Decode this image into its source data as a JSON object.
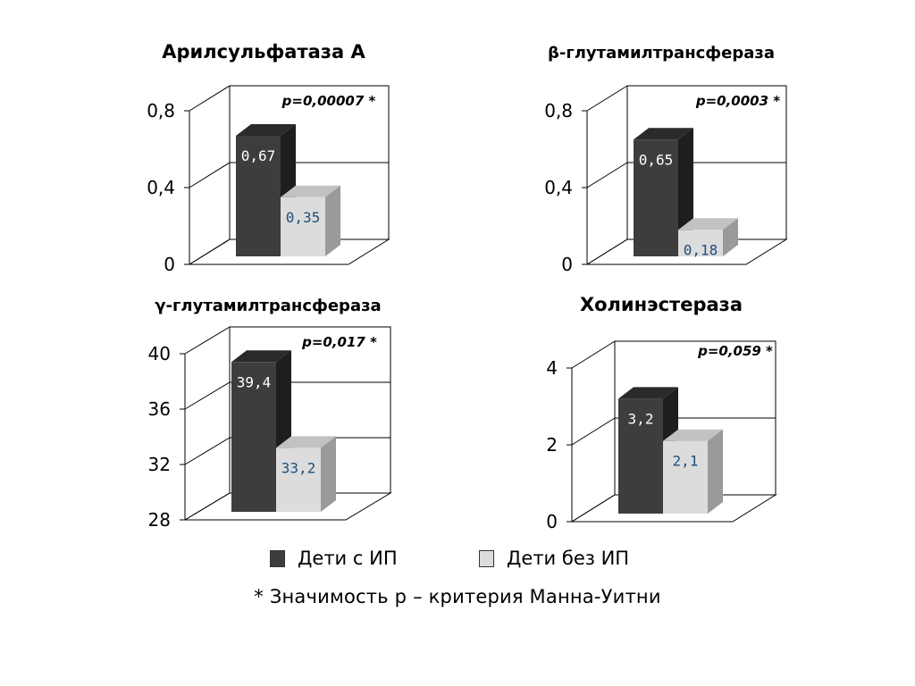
{
  "colors": {
    "series1_front": "#3d3d3d",
    "series1_top": "#2a2a2a",
    "series1_side": "#1e1e1e",
    "series2_front": "#dcdcdc",
    "series2_top": "#c2c2c2",
    "series2_side": "#9a9a9a",
    "label_dark": "#ffffff",
    "label_light": "#1f4f7a",
    "grid": "#000000"
  },
  "legend": {
    "series1": "Дети с ИП",
    "series2": "Дети без ИП"
  },
  "footnote": "* Значимость р – критерия Манна-Уитни",
  "chart_data": [
    {
      "type": "bar",
      "title": "Арилсульфатаза А",
      "annotation": "p=0,00007 *",
      "yticks": [
        "0",
        "0,4",
        "0,8"
      ],
      "ylim": [
        0,
        0.8
      ],
      "series": [
        {
          "name": "Дети с ИП",
          "value": 0.67,
          "label": "0,67"
        },
        {
          "name": "Дети без ИП",
          "value": 0.35,
          "label": "0,35"
        }
      ]
    },
    {
      "type": "bar",
      "title": "β-глутамилтрансфераза",
      "annotation": "p=0,0003 *",
      "yticks": [
        "0",
        "0,4",
        "0,8"
      ],
      "ylim": [
        0,
        0.8
      ],
      "series": [
        {
          "name": "Дети с ИП",
          "value": 0.65,
          "label": "0,65"
        },
        {
          "name": "Дети без ИП",
          "value": 0.18,
          "label": "0,18"
        }
      ]
    },
    {
      "type": "bar",
      "title": "γ-глутамилтрансфераза",
      "annotation": "p=0,017 *",
      "yticks": [
        "28",
        "32",
        "36",
        "40"
      ],
      "ylim": [
        28,
        40
      ],
      "series": [
        {
          "name": "Дети с ИП",
          "value": 39.4,
          "label": "39,4"
        },
        {
          "name": "Дети без ИП",
          "value": 33.2,
          "label": "33,2"
        }
      ]
    },
    {
      "type": "bar",
      "title": "Холинэстераза",
      "annotation": "p=0,059 *",
      "yticks": [
        "0",
        "2",
        "4"
      ],
      "ylim": [
        0,
        4
      ],
      "series": [
        {
          "name": "Дети с ИП",
          "value": 3.2,
          "label": "3,2"
        },
        {
          "name": "Дети без ИП",
          "value": 2.1,
          "label": "2,1"
        }
      ]
    }
  ]
}
